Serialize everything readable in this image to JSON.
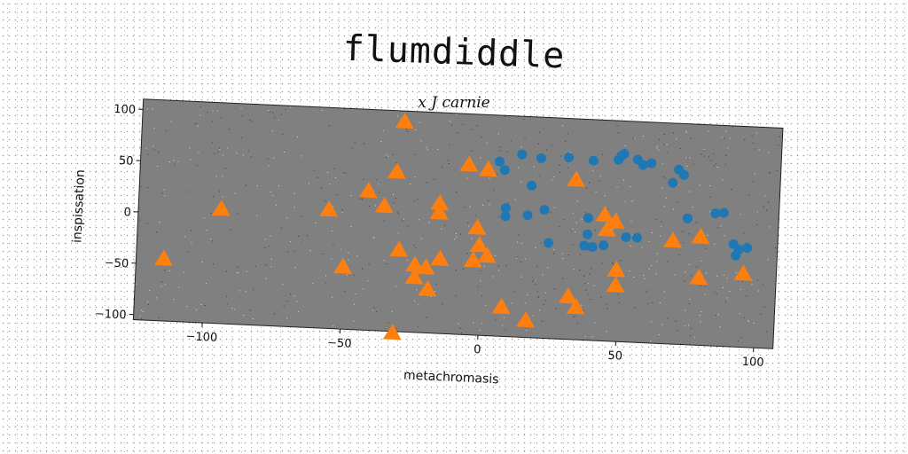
{
  "chart_data": {
    "type": "scatter",
    "title": "flumdiddle",
    "subtitle": "x J carnie",
    "xlabel": "metachromasis",
    "ylabel": "inspissation",
    "xlim": [
      -125,
      107
    ],
    "ylim": [
      -105,
      110
    ],
    "xticks": [
      -100,
      -50,
      0,
      50,
      100
    ],
    "yticks": [
      100,
      50,
      0,
      -50,
      -100
    ],
    "grid": false,
    "colors": {
      "plot_bg": "#808080",
      "blue": "#1f77b4",
      "orange": "#ff7f0e"
    },
    "series": [
      {
        "marker": "circle",
        "color": "#1f77b4",
        "points": [
          [
            5,
            65
          ],
          [
            7,
            57
          ],
          [
            13,
            73
          ],
          [
            20,
            70
          ],
          [
            30,
            72
          ],
          [
            39,
            70
          ],
          [
            48,
            72
          ],
          [
            49,
            76
          ],
          [
            50,
            78
          ],
          [
            55,
            73
          ],
          [
            57,
            68
          ],
          [
            60,
            70
          ],
          [
            68,
            52
          ],
          [
            70,
            65
          ],
          [
            72,
            60
          ],
          [
            17,
            43
          ],
          [
            8,
            20
          ],
          [
            8,
            12
          ],
          [
            16,
            14
          ],
          [
            22,
            20
          ],
          [
            24,
            -12
          ],
          [
            38,
            14
          ],
          [
            38,
            -2
          ],
          [
            37,
            -13
          ],
          [
            44,
            -12
          ],
          [
            40,
            -14
          ],
          [
            52,
            -3
          ],
          [
            56,
            -3
          ],
          [
            74,
            18
          ],
          [
            84,
            24
          ],
          [
            87,
            25
          ],
          [
            91,
            -5
          ],
          [
            93,
            -10
          ],
          [
            96,
            -8
          ],
          [
            92,
            -16
          ]
        ]
      },
      {
        "marker": "triangle",
        "color": "#ff7f0e",
        "points": [
          [
            -30,
            99
          ],
          [
            -32,
            50
          ],
          [
            -42,
            30
          ],
          [
            -36,
            16
          ],
          [
            -56,
            10
          ],
          [
            -95,
            6
          ],
          [
            -115,
            -45
          ],
          [
            -50,
            -45
          ],
          [
            -30,
            -26
          ],
          [
            -24,
            -40
          ],
          [
            -20,
            -42
          ],
          [
            -15,
            -33
          ],
          [
            -24,
            -52
          ],
          [
            -19,
            -63
          ],
          [
            -31,
            -107
          ],
          [
            -16,
            21
          ],
          [
            -16,
            12
          ],
          [
            -6,
            60
          ],
          [
            1,
            56
          ],
          [
            -2,
            -1
          ],
          [
            -1,
            -18
          ],
          [
            2,
            -28
          ],
          [
            -3,
            -33
          ],
          [
            8,
            -77
          ],
          [
            17,
            -89
          ],
          [
            32,
            -64
          ],
          [
            35,
            -74
          ],
          [
            33,
            50
          ],
          [
            44,
            17
          ],
          [
            45,
            3
          ],
          [
            48,
            11
          ],
          [
            49,
            -36
          ],
          [
            49,
            -51
          ],
          [
            69,
            -5
          ],
          [
            79,
            0
          ],
          [
            79,
            -40
          ],
          [
            95,
            -34
          ]
        ]
      }
    ]
  }
}
